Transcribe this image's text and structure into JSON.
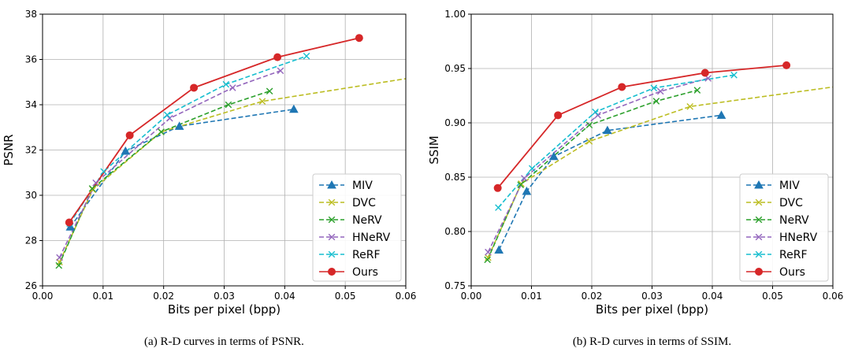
{
  "chart_data": [
    {
      "type": "line",
      "xlabel": "Bits per pixel (bpp)",
      "ylabel": "PSNR",
      "xlim": [
        0.0,
        0.06
      ],
      "ylim": [
        26,
        38
      ],
      "xticks": [
        0.0,
        0.01,
        0.02,
        0.03,
        0.04,
        0.05,
        0.06
      ],
      "xtick_labels": [
        "0.00",
        "0.01",
        "0.02",
        "0.03",
        "0.04",
        "0.05",
        "0.06"
      ],
      "yticks": [
        26,
        28,
        30,
        32,
        34,
        36,
        38
      ],
      "ytick_labels": [
        "26",
        "28",
        "30",
        "32",
        "34",
        "36",
        "38"
      ],
      "grid": true,
      "legend_position": "lower-right",
      "caption": "(a)  R-D curves in terms of PSNR.",
      "series": [
        {
          "name": "MIV",
          "color": "#1f77b4",
          "marker": "triangle",
          "dash": true,
          "x": [
            0.0046,
            0.0137,
            0.0226,
            0.0415
          ],
          "y": [
            28.6,
            31.95,
            33.05,
            33.8
          ]
        },
        {
          "name": "DVC",
          "color": "#bcbd22",
          "marker": "x",
          "dash": true,
          "x": [
            0.0028,
            0.0083,
            0.0196,
            0.0363,
            0.06
          ],
          "y": [
            27.05,
            30.25,
            32.8,
            34.15,
            35.15
          ]
        },
        {
          "name": "NeRV",
          "color": "#2ca02c",
          "marker": "x",
          "dash": true,
          "x": [
            0.0027,
            0.0082,
            0.0196,
            0.0307,
            0.0375
          ],
          "y": [
            26.9,
            30.3,
            32.8,
            34.0,
            34.6
          ]
        },
        {
          "name": "HNeRV",
          "color": "#9467bd",
          "marker": "x",
          "dash": true,
          "x": [
            0.0028,
            0.0088,
            0.021,
            0.0314,
            0.0393
          ],
          "y": [
            27.25,
            30.55,
            33.4,
            34.75,
            35.5
          ]
        },
        {
          "name": "ReRF",
          "color": "#17becf",
          "marker": "x",
          "dash": true,
          "x": [
            0.0045,
            0.0101,
            0.0206,
            0.0303,
            0.0436
          ],
          "y": [
            28.75,
            31.05,
            33.55,
            34.9,
            36.15
          ]
        },
        {
          "name": "Ours",
          "color": "#d62728",
          "marker": "circle",
          "dash": false,
          "x": [
            0.0044,
            0.0144,
            0.025,
            0.0388,
            0.0523
          ],
          "y": [
            28.8,
            32.65,
            34.75,
            36.1,
            36.95
          ]
        }
      ]
    },
    {
      "type": "line",
      "xlabel": "Bits per pixel (bpp)",
      "ylabel": "SSIM",
      "xlim": [
        0.0,
        0.06
      ],
      "ylim": [
        0.75,
        1.0
      ],
      "xticks": [
        0.0,
        0.01,
        0.02,
        0.03,
        0.04,
        0.05,
        0.06
      ],
      "xtick_labels": [
        "0.00",
        "0.01",
        "0.02",
        "0.03",
        "0.04",
        "0.05",
        "0.06"
      ],
      "yticks": [
        0.75,
        0.8,
        0.85,
        0.9,
        0.95,
        1.0
      ],
      "ytick_labels": [
        "0.75",
        "0.80",
        "0.85",
        "0.90",
        "0.95",
        "1.00"
      ],
      "grid": true,
      "legend_position": "lower-right",
      "caption": "(b)  R-D curves in terms of SSIM.",
      "series": [
        {
          "name": "MIV",
          "color": "#1f77b4",
          "marker": "triangle",
          "dash": true,
          "x": [
            0.0046,
            0.0092,
            0.0137,
            0.0226,
            0.0415
          ],
          "y": [
            0.783,
            0.837,
            0.869,
            0.893,
            0.907
          ]
        },
        {
          "name": "DVC",
          "color": "#bcbd22",
          "marker": "x",
          "dash": true,
          "x": [
            0.0028,
            0.0083,
            0.0196,
            0.0363,
            0.06
          ],
          "y": [
            0.776,
            0.844,
            0.883,
            0.915,
            0.933
          ]
        },
        {
          "name": "NeRV",
          "color": "#2ca02c",
          "marker": "x",
          "dash": true,
          "x": [
            0.0027,
            0.0082,
            0.0196,
            0.0307,
            0.0375
          ],
          "y": [
            0.774,
            0.843,
            0.898,
            0.92,
            0.93
          ]
        },
        {
          "name": "HNeRV",
          "color": "#9467bd",
          "marker": "x",
          "dash": true,
          "x": [
            0.0028,
            0.0088,
            0.021,
            0.0314,
            0.0393
          ],
          "y": [
            0.781,
            0.849,
            0.907,
            0.929,
            0.941
          ]
        },
        {
          "name": "ReRF",
          "color": "#17becf",
          "marker": "x",
          "dash": true,
          "x": [
            0.0045,
            0.0101,
            0.0206,
            0.0303,
            0.0436
          ],
          "y": [
            0.822,
            0.858,
            0.91,
            0.932,
            0.944
          ]
        },
        {
          "name": "Ours",
          "color": "#d62728",
          "marker": "circle",
          "dash": false,
          "x": [
            0.0044,
            0.0144,
            0.025,
            0.0388,
            0.0523
          ],
          "y": [
            0.84,
            0.907,
            0.933,
            0.946,
            0.953
          ]
        }
      ]
    }
  ]
}
